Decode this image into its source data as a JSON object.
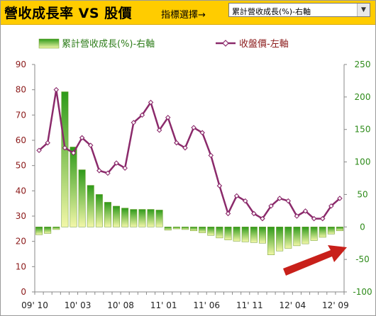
{
  "header": {
    "title": "營收成長率 VS 股價",
    "indicator_label": "指標選擇→",
    "selected_indicator": "累計營收成長(%)-右軸"
  },
  "colors": {
    "header_bg": "#ffcc00",
    "price_line": "#8b2a6b",
    "bar_top": "#2e9a1a",
    "bar_bottom": "#f2f7a8",
    "axis_left": "#8b1a1a",
    "axis_right": "#2e8b1a",
    "arrow": "#c8201a"
  },
  "chart_data": {
    "type": "bar+line",
    "legend": {
      "bars": "累計營收成長(%)-右軸",
      "line": "收盤價-左軸"
    },
    "x_tick_labels": [
      "09' 10",
      "10' 03",
      "10' 08",
      "11' 01",
      "11' 06",
      "11' 11",
      "12' 04",
      "12' 09"
    ],
    "left_axis": {
      "min": 0,
      "max": 90,
      "step": 10,
      "ticks": [
        "0",
        "10",
        "20",
        "30",
        "40",
        "50",
        "60",
        "70",
        "80",
        "90"
      ]
    },
    "right_axis": {
      "min": -100,
      "max": 250,
      "step": 50,
      "ticks": [
        "-100",
        "-50",
        "0",
        "50",
        "100",
        "150",
        "200",
        "250"
      ]
    },
    "series": [
      {
        "name": "累計營收成長(%)-右軸",
        "kind": "bar",
        "axis": "right",
        "values": [
          -12,
          -10,
          -4,
          208,
          123,
          88,
          64,
          50,
          38,
          32,
          29,
          27,
          27,
          27,
          26,
          -5,
          -3,
          -4,
          -6,
          -9,
          -13,
          -17,
          -20,
          -22,
          -23,
          -24,
          -25,
          -43,
          -37,
          -33,
          -29,
          -26,
          -21,
          -16,
          -11,
          -6
        ]
      },
      {
        "name": "收盤價-左軸",
        "kind": "line",
        "axis": "left",
        "values": [
          56,
          59,
          80,
          57,
          55,
          61,
          58,
          48,
          47,
          51,
          49,
          67,
          70,
          75,
          64,
          69,
          59,
          57,
          65,
          63,
          54,
          42,
          31,
          38,
          36,
          31,
          29,
          34,
          37,
          36,
          30,
          32,
          29,
          29,
          34,
          37
        ]
      }
    ],
    "grid": false
  }
}
